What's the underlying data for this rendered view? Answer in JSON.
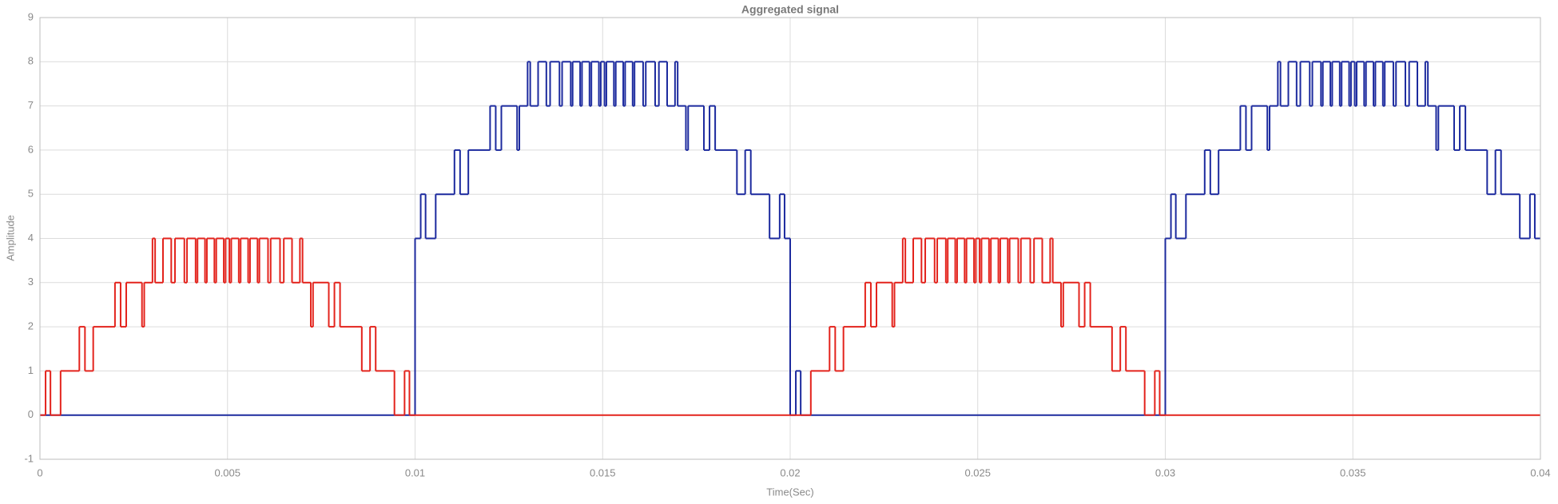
{
  "chart_data": {
    "type": "step",
    "title": "Aggregated signal",
    "xlabel": "Time(Sec)",
    "ylabel": "Amplitude",
    "xlim": [
      0,
      0.04
    ],
    "ylim": [
      -1,
      9
    ],
    "xticks": [
      0,
      0.005,
      0.01,
      0.015,
      0.02,
      0.025,
      0.03,
      0.035,
      0.04
    ],
    "yticks": [
      -1,
      0,
      1,
      2,
      3,
      4,
      5,
      6,
      7,
      8,
      9
    ],
    "grid": true,
    "step": "post",
    "series": [
      {
        "color": "#1c2a9e",
        "x": [
          0,
          0.01,
          0.01015,
          0.01028,
          0.01055,
          0.01105,
          0.0112,
          0.01142,
          0.012,
          0.01215,
          0.0123,
          0.01272,
          0.01278,
          0.013,
          0.01307,
          0.01328,
          0.0135,
          0.0136,
          0.01385,
          0.01392,
          0.01415,
          0.0142,
          0.0144,
          0.01445,
          0.01465,
          0.0147,
          0.0149,
          0.01495,
          0.01505,
          0.0151,
          0.0153,
          0.01535,
          0.01555,
          0.0156,
          0.0158,
          0.01585,
          0.01608,
          0.01615,
          0.0164,
          0.0165,
          0.01672,
          0.01693,
          0.017,
          0.01722,
          0.01728,
          0.0177,
          0.01785,
          0.018,
          0.01858,
          0.0188,
          0.01895,
          0.01945,
          0.01972,
          0.01985,
          0.02,
          0.02015,
          0.02028,
          0.03,
          0.03015,
          0.03028,
          0.03055,
          0.03105,
          0.0312,
          0.03142,
          0.032,
          0.03215,
          0.0323,
          0.03272,
          0.03278,
          0.033,
          0.03307,
          0.03328,
          0.0335,
          0.0336,
          0.03385,
          0.03392,
          0.03415,
          0.0342,
          0.0344,
          0.03445,
          0.03465,
          0.0347,
          0.0349,
          0.03495,
          0.03505,
          0.0351,
          0.0353,
          0.03535,
          0.03555,
          0.0356,
          0.0358,
          0.03585,
          0.03608,
          0.03615,
          0.0364,
          0.0365,
          0.03672,
          0.03693,
          0.037,
          0.03722,
          0.03728,
          0.0377,
          0.03785,
          0.038,
          0.03858,
          0.0388,
          0.03895,
          0.03945,
          0.03972,
          0.03985
        ],
        "values": [
          0,
          4,
          5,
          4,
          5,
          6,
          5,
          6,
          7,
          6,
          7,
          6,
          7,
          8,
          7,
          8,
          7,
          8,
          7,
          8,
          7,
          8,
          7,
          8,
          7,
          8,
          7,
          8,
          7,
          8,
          7,
          8,
          7,
          8,
          7,
          8,
          7,
          8,
          7,
          8,
          7,
          8,
          7,
          6,
          7,
          6,
          7,
          6,
          5,
          6,
          5,
          4,
          5,
          4,
          0,
          1,
          0,
          4,
          5,
          4,
          5,
          6,
          5,
          6,
          7,
          6,
          7,
          6,
          7,
          8,
          7,
          8,
          7,
          8,
          7,
          8,
          7,
          8,
          7,
          8,
          7,
          8,
          7,
          8,
          7,
          8,
          7,
          8,
          7,
          8,
          7,
          8,
          7,
          8,
          7,
          8,
          7,
          8,
          7,
          6,
          7,
          6,
          7,
          6,
          5,
          6,
          5,
          4,
          5,
          4
        ]
      },
      {
        "color": "#e3231c",
        "x": [
          0,
          0.00015,
          0.00028,
          0.00055,
          0.00105,
          0.0012,
          0.00142,
          0.002,
          0.00215,
          0.0023,
          0.00272,
          0.00278,
          0.003,
          0.00307,
          0.00328,
          0.0035,
          0.0036,
          0.00385,
          0.00392,
          0.00415,
          0.0042,
          0.0044,
          0.00445,
          0.00465,
          0.0047,
          0.0049,
          0.00495,
          0.00505,
          0.0051,
          0.0053,
          0.00535,
          0.00555,
          0.0056,
          0.0058,
          0.00585,
          0.00608,
          0.00615,
          0.0064,
          0.0065,
          0.00672,
          0.00693,
          0.007,
          0.00722,
          0.00728,
          0.0077,
          0.00785,
          0.008,
          0.00858,
          0.0088,
          0.00895,
          0.00945,
          0.00972,
          0.00985,
          0.02055,
          0.02105,
          0.0212,
          0.02142,
          0.022,
          0.02215,
          0.0223,
          0.02272,
          0.02278,
          0.023,
          0.02307,
          0.02328,
          0.0235,
          0.0236,
          0.02385,
          0.02392,
          0.02415,
          0.0242,
          0.0244,
          0.02445,
          0.02465,
          0.0247,
          0.0249,
          0.02495,
          0.02505,
          0.0251,
          0.0253,
          0.02535,
          0.02555,
          0.0256,
          0.0258,
          0.02585,
          0.02608,
          0.02615,
          0.0264,
          0.0265,
          0.02672,
          0.02693,
          0.027,
          0.02722,
          0.02728,
          0.0277,
          0.02785,
          0.028,
          0.02858,
          0.0288,
          0.02895,
          0.02945,
          0.02972,
          0.02985
        ],
        "values": [
          0,
          1,
          0,
          1,
          2,
          1,
          2,
          3,
          2,
          3,
          2,
          3,
          4,
          3,
          4,
          3,
          4,
          3,
          4,
          3,
          4,
          3,
          4,
          3,
          4,
          3,
          4,
          3,
          4,
          3,
          4,
          3,
          4,
          3,
          4,
          3,
          4,
          3,
          4,
          3,
          4,
          3,
          2,
          3,
          2,
          3,
          2,
          1,
          2,
          1,
          0,
          1,
          0,
          1,
          2,
          1,
          2,
          3,
          2,
          3,
          2,
          3,
          4,
          3,
          4,
          3,
          4,
          3,
          4,
          3,
          4,
          3,
          4,
          3,
          4,
          3,
          4,
          3,
          4,
          3,
          4,
          3,
          4,
          3,
          4,
          3,
          4,
          3,
          4,
          3,
          4,
          3,
          2,
          3,
          2,
          3,
          2,
          1,
          2,
          1,
          0,
          1,
          0
        ]
      }
    ]
  }
}
